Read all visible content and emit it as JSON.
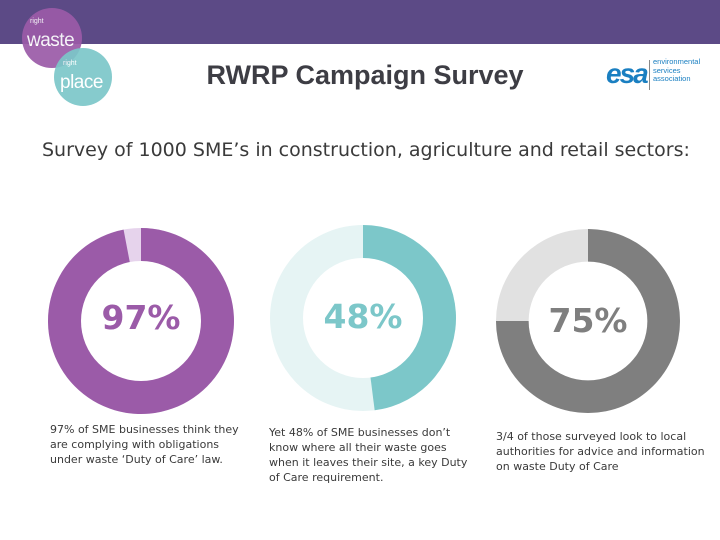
{
  "header": {
    "bar_color": "#5c4a86",
    "logo_left": {
      "line1": "right",
      "word1": "waste",
      "line2": "right",
      "word2": "place"
    },
    "title": "RWRP Campaign Survey",
    "logo_right": {
      "mark": "esa",
      "text_line1": "environmental",
      "text_line2": "services",
      "text_line3": "association"
    }
  },
  "intro": "Survey of 1000 SME’s in construction, agriculture and retail sectors:",
  "charts": [
    {
      "percent_label": "97%",
      "value": 97,
      "color": "#9b5ba8",
      "rest_color": "#e6d3ec",
      "caption": "97% of SME businesses think they are complying with obligations under waste ‘Duty of Care’ law."
    },
    {
      "percent_label": "48%",
      "value": 48,
      "color": "#7cc7c9",
      "rest_color": "#e6f4f4",
      "caption": "Yet 48% of SME businesses don’t know where all their waste goes when it leaves their site, a key Duty of Care requirement."
    },
    {
      "percent_label": "75%",
      "value": 75,
      "color": "#7f7f7f",
      "rest_color": "#e1e1e1",
      "caption": "3/4 of those surveyed look to local authorities for advice and information on waste Duty of Care"
    }
  ]
}
